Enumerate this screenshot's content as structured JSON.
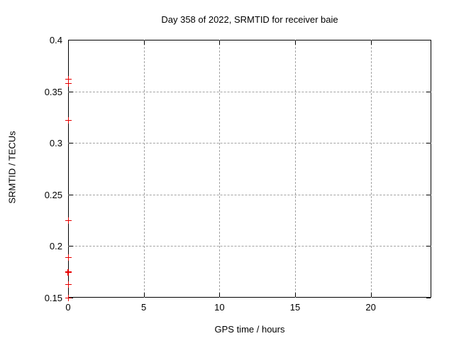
{
  "chart_data": {
    "type": "scatter",
    "title": "Day 358 of 2022, SRMTID for receiver baie",
    "xlabel": "GPS time / hours",
    "ylabel": "SRMTID / TECUs",
    "xlim": [
      0,
      24
    ],
    "ylim": [
      0.15,
      0.4
    ],
    "xticks": [
      0,
      5,
      10,
      15,
      20
    ],
    "xtick_labels": [
      "0",
      "5",
      "10",
      "15",
      "20"
    ],
    "yticks": [
      0.15,
      0.2,
      0.25,
      0.3,
      0.35,
      0.4
    ],
    "ytick_labels": [
      "0.15",
      "0.2",
      "0.25",
      "0.3",
      "0.35",
      "0.4"
    ],
    "grid": true,
    "legend": "none",
    "marker": "plus",
    "colors": {
      "marker": "#e60000",
      "grid": "#a3a3a3",
      "axis": "#000000",
      "background": "#ffffff"
    },
    "series": [
      {
        "name": "SRMTID",
        "points": [
          {
            "x": 0,
            "y": 0.362
          },
          {
            "x": 0,
            "y": 0.358
          },
          {
            "x": 0,
            "y": 0.322
          },
          {
            "x": 0,
            "y": 0.225
          },
          {
            "x": 0,
            "y": 0.189
          },
          {
            "x": 0,
            "y": 0.175,
            "bold": true
          },
          {
            "x": 0,
            "y": 0.163
          },
          {
            "x": 0,
            "y": 0.15
          }
        ]
      }
    ]
  }
}
